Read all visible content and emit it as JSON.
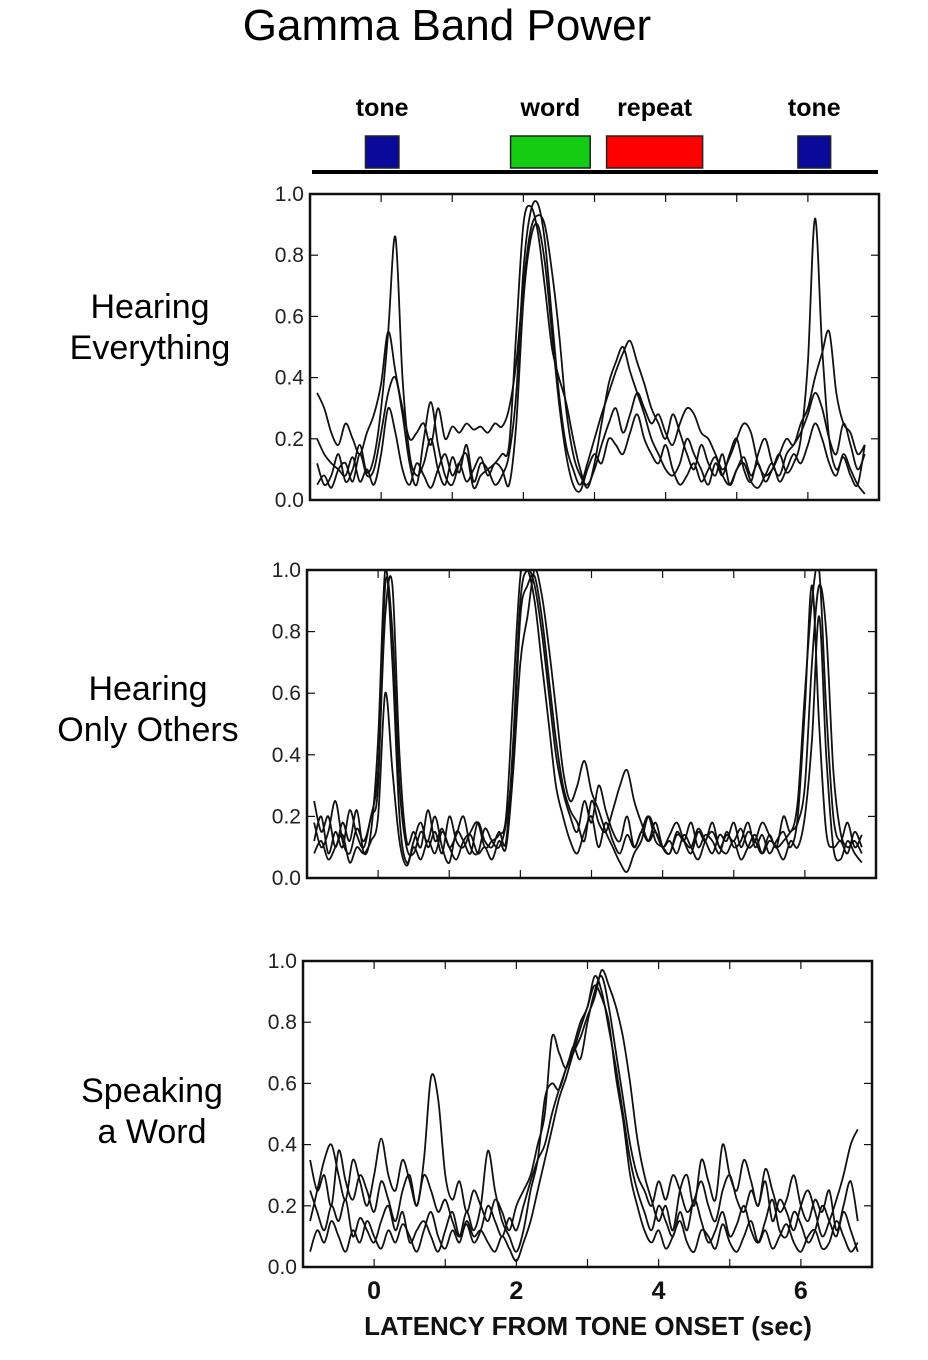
{
  "chart_data": {
    "type": "line",
    "title": "Gamma Band Power",
    "xlabel": "LATENCY FROM TONE ONSET (sec)",
    "ylabel": "",
    "xlim": [
      -1,
      7
    ],
    "ylim": [
      0,
      1
    ],
    "x_ticks": [
      0,
      2,
      4,
      6
    ],
    "y_ticks": [
      "0.0",
      "0.2",
      "0.4",
      "0.6",
      "0.8",
      "1.0"
    ],
    "grid": false,
    "events": [
      {
        "label": "tone",
        "start": -0.22,
        "end": 0.25,
        "color": "#0a0a9a"
      },
      {
        "label": "word",
        "start": 1.82,
        "end": 2.94,
        "color": "#14cc14"
      },
      {
        "label": "repeat",
        "start": 3.17,
        "end": 4.52,
        "color": "#ff0000"
      },
      {
        "label": "tone",
        "start": 5.86,
        "end": 6.32,
        "color": "#0a0a9a"
      }
    ],
    "x_start": -0.9,
    "x_step": 0.1,
    "panels": [
      {
        "label": [
          "Hearing",
          "Everything"
        ],
        "series": [
          [
            0.12,
            0.05,
            0.08,
            0.15,
            0.06,
            0.1,
            0.18,
            0.09,
            0.14,
            0.3,
            0.55,
            0.86,
            0.4,
            0.15,
            0.08,
            0.12,
            0.2,
            0.1,
            0.05,
            0.14,
            0.09,
            0.18,
            0.06,
            0.12,
            0.1,
            0.05,
            0.08,
            0.15,
            0.35,
            0.75,
            0.94,
            0.97,
            0.85,
            0.6,
            0.35,
            0.18,
            0.1,
            0.05,
            0.12,
            0.2,
            0.28,
            0.35,
            0.42,
            0.48,
            0.52,
            0.45,
            0.38,
            0.3,
            0.25,
            0.2,
            0.28,
            0.22,
            0.15,
            0.1,
            0.18,
            0.12,
            0.08,
            0.15,
            0.05,
            0.1,
            0.14,
            0.08,
            0.12,
            0.06,
            0.1,
            0.15,
            0.09,
            0.12,
            0.2,
            0.45,
            0.92,
            0.5,
            0.2,
            0.1,
            0.14,
            0.08,
            0.05,
            0.18
          ],
          [
            0.35,
            0.3,
            0.22,
            0.18,
            0.25,
            0.2,
            0.15,
            0.22,
            0.28,
            0.38,
            0.55,
            0.42,
            0.3,
            0.2,
            0.22,
            0.25,
            0.18,
            0.3,
            0.2,
            0.24,
            0.22,
            0.25,
            0.23,
            0.24,
            0.22,
            0.25,
            0.24,
            0.3,
            0.45,
            0.7,
            0.88,
            0.93,
            0.9,
            0.75,
            0.55,
            0.3,
            0.15,
            0.08,
            0.05,
            0.1,
            0.18,
            0.25,
            0.3,
            0.22,
            0.28,
            0.35,
            0.3,
            0.25,
            0.28,
            0.22,
            0.18,
            0.25,
            0.3,
            0.28,
            0.22,
            0.2,
            0.15,
            0.1,
            0.14,
            0.2,
            0.25,
            0.22,
            0.12,
            0.08,
            0.1,
            0.15,
            0.2,
            0.18,
            0.25,
            0.3,
            0.4,
            0.48,
            0.55,
            0.35,
            0.25,
            0.22,
            0.15,
            0.18
          ],
          [
            0.05,
            0.08,
            0.04,
            0.1,
            0.12,
            0.06,
            0.15,
            0.08,
            0.1,
            0.22,
            0.35,
            0.4,
            0.28,
            0.12,
            0.05,
            0.2,
            0.32,
            0.18,
            0.08,
            0.05,
            0.12,
            0.15,
            0.04,
            0.08,
            0.1,
            0.12,
            0.15,
            0.18,
            0.55,
            0.9,
            0.96,
            0.88,
            0.7,
            0.5,
            0.4,
            0.32,
            0.2,
            0.1,
            0.04,
            0.12,
            0.25,
            0.38,
            0.45,
            0.5,
            0.42,
            0.35,
            0.28,
            0.2,
            0.15,
            0.1,
            0.08,
            0.12,
            0.2,
            0.15,
            0.1,
            0.05,
            0.12,
            0.08,
            0.15,
            0.2,
            0.1,
            0.06,
            0.15,
            0.2,
            0.12,
            0.08,
            0.15,
            0.18,
            0.22,
            0.28,
            0.35,
            0.3,
            0.2,
            0.15,
            0.25,
            0.18,
            0.1,
            0.15
          ],
          [
            0.2,
            0.15,
            0.12,
            0.1,
            0.08,
            0.14,
            0.06,
            0.1,
            0.05,
            0.15,
            0.3,
            0.22,
            0.1,
            0.05,
            0.12,
            0.08,
            0.04,
            0.1,
            0.15,
            0.08,
            0.12,
            0.06,
            0.1,
            0.14,
            0.08,
            0.12,
            0.1,
            0.05,
            0.25,
            0.65,
            0.85,
            0.9,
            0.78,
            0.55,
            0.32,
            0.15,
            0.05,
            0.03,
            0.1,
            0.15,
            0.12,
            0.2,
            0.18,
            0.15,
            0.22,
            0.28,
            0.2,
            0.15,
            0.12,
            0.18,
            0.1,
            0.05,
            0.08,
            0.12,
            0.06,
            0.1,
            0.14,
            0.08,
            0.05,
            0.1,
            0.12,
            0.06,
            0.04,
            0.08,
            0.12,
            0.06,
            0.1,
            0.15,
            0.12,
            0.18,
            0.25,
            0.2,
            0.12,
            0.08,
            0.15,
            0.1,
            0.05,
            0.02
          ]
        ]
      },
      {
        "label": [
          "Hearing",
          "Only Others"
        ],
        "series": [
          [
            0.25,
            0.15,
            0.2,
            0.1,
            0.18,
            0.12,
            0.22,
            0.08,
            0.15,
            0.45,
            1.0,
            0.7,
            0.2,
            0.05,
            0.12,
            0.18,
            0.1,
            0.15,
            0.08,
            0.2,
            0.12,
            0.1,
            0.15,
            0.18,
            0.1,
            0.12,
            0.14,
            0.2,
            0.6,
            0.98,
            1.0,
            0.9,
            0.7,
            0.5,
            0.3,
            0.2,
            0.12,
            0.08,
            0.15,
            0.2,
            0.1,
            0.18,
            0.12,
            0.08,
            0.14,
            0.1,
            0.15,
            0.2,
            0.12,
            0.1,
            0.08,
            0.15,
            0.12,
            0.18,
            0.1,
            0.14,
            0.12,
            0.08,
            0.15,
            0.1,
            0.12,
            0.18,
            0.1,
            0.14,
            0.08,
            0.12,
            0.15,
            0.1,
            0.2,
            0.55,
            0.95,
            0.5,
            0.15,
            0.1,
            0.12,
            0.08,
            0.15,
            0.1
          ],
          [
            0.12,
            0.2,
            0.08,
            0.15,
            0.1,
            0.22,
            0.14,
            0.1,
            0.2,
            0.3,
            0.95,
            0.8,
            0.3,
            0.1,
            0.08,
            0.15,
            0.12,
            0.2,
            0.1,
            0.05,
            0.15,
            0.12,
            0.08,
            0.18,
            0.12,
            0.1,
            0.15,
            0.12,
            0.45,
            0.9,
            1.0,
            0.95,
            0.8,
            0.6,
            0.4,
            0.28,
            0.2,
            0.15,
            0.25,
            0.18,
            0.3,
            0.22,
            0.15,
            0.12,
            0.2,
            0.1,
            0.15,
            0.12,
            0.18,
            0.1,
            0.08,
            0.14,
            0.12,
            0.1,
            0.16,
            0.12,
            0.08,
            0.14,
            0.12,
            0.18,
            0.1,
            0.15,
            0.12,
            0.08,
            0.14,
            0.1,
            0.2,
            0.15,
            0.25,
            0.6,
            0.9,
            1.0,
            0.55,
            0.2,
            0.12,
            0.18,
            0.1,
            0.14
          ],
          [
            0.08,
            0.12,
            0.06,
            0.1,
            0.14,
            0.05,
            0.1,
            0.08,
            0.12,
            0.2,
            0.6,
            0.35,
            0.12,
            0.04,
            0.1,
            0.06,
            0.12,
            0.08,
            0.15,
            0.1,
            0.06,
            0.12,
            0.14,
            0.08,
            0.1,
            0.06,
            0.12,
            0.1,
            0.35,
            0.7,
            0.85,
            1.0,
            0.92,
            0.75,
            0.55,
            0.35,
            0.25,
            0.3,
            0.38,
            0.28,
            0.22,
            0.15,
            0.1,
            0.05,
            0.02,
            0.08,
            0.12,
            0.2,
            0.15,
            0.1,
            0.12,
            0.08,
            0.14,
            0.1,
            0.06,
            0.12,
            0.15,
            0.1,
            0.08,
            0.12,
            0.06,
            0.1,
            0.14,
            0.08,
            0.12,
            0.1,
            0.06,
            0.12,
            0.1,
            0.2,
            0.45,
            0.85,
            0.4,
            0.1,
            0.06,
            0.12,
            0.08,
            0.05
          ],
          [
            0.18,
            0.1,
            0.15,
            0.25,
            0.12,
            0.08,
            0.16,
            0.12,
            0.2,
            0.35,
            0.85,
            0.95,
            0.4,
            0.12,
            0.15,
            0.1,
            0.22,
            0.12,
            0.16,
            0.1,
            0.14,
            0.2,
            0.1,
            0.08,
            0.16,
            0.12,
            0.1,
            0.18,
            0.4,
            0.85,
            0.95,
            0.98,
            0.85,
            0.65,
            0.45,
            0.3,
            0.22,
            0.18,
            0.12,
            0.25,
            0.18,
            0.15,
            0.22,
            0.3,
            0.35,
            0.25,
            0.18,
            0.12,
            0.15,
            0.1,
            0.14,
            0.18,
            0.12,
            0.08,
            0.15,
            0.12,
            0.18,
            0.1,
            0.14,
            0.12,
            0.16,
            0.1,
            0.12,
            0.18,
            0.14,
            0.1,
            0.12,
            0.15,
            0.18,
            0.3,
            0.7,
            0.95,
            0.8,
            0.35,
            0.15,
            0.1,
            0.12,
            0.08
          ]
        ]
      },
      {
        "label": [
          "Speaking",
          "a Word"
        ],
        "series": [
          [
            0.35,
            0.25,
            0.3,
            0.2,
            0.38,
            0.28,
            0.22,
            0.3,
            0.25,
            0.18,
            0.28,
            0.22,
            0.15,
            0.25,
            0.3,
            0.2,
            0.35,
            0.62,
            0.55,
            0.3,
            0.22,
            0.28,
            0.18,
            0.25,
            0.2,
            0.15,
            0.22,
            0.18,
            0.12,
            0.2,
            0.25,
            0.3,
            0.4,
            0.5,
            0.75,
            0.7,
            0.65,
            0.72,
            0.68,
            0.8,
            0.9,
            0.95,
            0.85,
            0.7,
            0.55,
            0.4,
            0.3,
            0.25,
            0.2,
            0.28,
            0.22,
            0.3,
            0.25,
            0.18,
            0.22,
            0.28,
            0.2,
            0.15,
            0.25,
            0.3,
            0.22,
            0.18,
            0.25,
            0.2,
            0.28,
            0.15,
            0.22,
            0.18,
            0.12,
            0.2,
            0.25,
            0.18,
            0.1,
            0.15,
            0.22,
            0.3,
            0.4,
            0.45
          ],
          [
            0.15,
            0.25,
            0.35,
            0.4,
            0.3,
            0.22,
            0.35,
            0.28,
            0.2,
            0.3,
            0.42,
            0.3,
            0.25,
            0.35,
            0.28,
            0.2,
            0.3,
            0.25,
            0.18,
            0.22,
            0.15,
            0.1,
            0.18,
            0.12,
            0.2,
            0.38,
            0.25,
            0.15,
            0.1,
            0.05,
            0.12,
            0.25,
            0.35,
            0.55,
            0.6,
            0.58,
            0.65,
            0.7,
            0.75,
            0.82,
            0.88,
            0.97,
            0.92,
            0.85,
            0.75,
            0.6,
            0.42,
            0.3,
            0.22,
            0.15,
            0.2,
            0.12,
            0.25,
            0.3,
            0.2,
            0.35,
            0.28,
            0.22,
            0.4,
            0.3,
            0.25,
            0.35,
            0.28,
            0.2,
            0.32,
            0.25,
            0.18,
            0.22,
            0.3,
            0.2,
            0.15,
            0.22,
            0.18,
            0.25,
            0.12,
            0.2,
            0.28,
            0.15
          ],
          [
            0.05,
            0.12,
            0.08,
            0.15,
            0.1,
            0.05,
            0.12,
            0.08,
            0.15,
            0.1,
            0.06,
            0.12,
            0.08,
            0.14,
            0.1,
            0.05,
            0.12,
            0.18,
            0.1,
            0.06,
            0.12,
            0.08,
            0.15,
            0.1,
            0.12,
            0.08,
            0.05,
            0.1,
            0.06,
            0.02,
            0.08,
            0.15,
            0.25,
            0.35,
            0.45,
            0.55,
            0.62,
            0.7,
            0.78,
            0.85,
            0.92,
            0.88,
            0.8,
            0.62,
            0.48,
            0.3,
            0.2,
            0.12,
            0.08,
            0.12,
            0.06,
            0.1,
            0.15,
            0.08,
            0.05,
            0.12,
            0.1,
            0.06,
            0.14,
            0.08,
            0.05,
            0.1,
            0.15,
            0.08,
            0.12,
            0.06,
            0.1,
            0.14,
            0.08,
            0.05,
            0.1,
            0.12,
            0.06,
            0.08,
            0.15,
            0.1,
            0.05,
            0.08
          ],
          [
            0.25,
            0.18,
            0.12,
            0.2,
            0.15,
            0.22,
            0.1,
            0.16,
            0.12,
            0.08,
            0.15,
            0.2,
            0.12,
            0.18,
            0.08,
            0.12,
            0.15,
            0.1,
            0.05,
            0.12,
            0.18,
            0.1,
            0.14,
            0.08,
            0.12,
            0.2,
            0.15,
            0.1,
            0.16,
            0.12,
            0.2,
            0.28,
            0.35,
            0.4,
            0.5,
            0.58,
            0.65,
            0.72,
            0.8,
            0.85,
            0.95,
            0.9,
            0.78,
            0.65,
            0.5,
            0.35,
            0.25,
            0.18,
            0.12,
            0.2,
            0.15,
            0.1,
            0.18,
            0.12,
            0.22,
            0.15,
            0.08,
            0.12,
            0.18,
            0.1,
            0.14,
            0.2,
            0.12,
            0.08,
            0.15,
            0.22,
            0.12,
            0.1,
            0.18,
            0.14,
            0.08,
            0.12,
            0.2,
            0.15,
            0.1,
            0.18,
            0.12,
            0.05
          ]
        ]
      }
    ]
  }
}
